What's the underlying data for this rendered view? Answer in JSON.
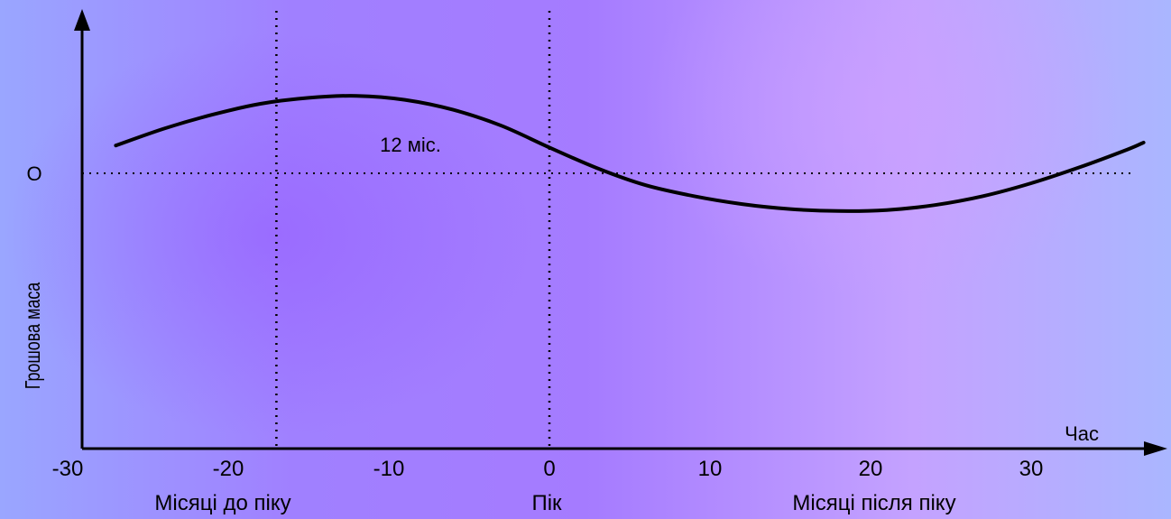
{
  "chart_data": {
    "type": "line",
    "xlabel": "Час",
    "ylabel": "Грошова маса",
    "zero_label": "O",
    "annotation": "12 міс.",
    "x_ticks": [
      "-30",
      "-20",
      "-10",
      "0",
      "10",
      "20",
      "30"
    ],
    "x_tick_values": [
      -30,
      -20,
      -10,
      0,
      10,
      20,
      30
    ],
    "xlim": [
      -30,
      37
    ],
    "vlines": [
      -17,
      0
    ],
    "region_labels": [
      "Місяці до піку",
      "Пік",
      "Місяці після піку"
    ],
    "series": [
      {
        "x": [
          -27,
          -24,
          -21,
          -18,
          -15,
          -12,
          -9,
          -6,
          -3,
          0,
          3,
          6,
          9,
          12,
          15,
          18,
          21,
          24,
          27,
          30,
          33,
          36,
          37
        ],
        "y": [
          0.28,
          0.45,
          0.59,
          0.7,
          0.76,
          0.78,
          0.74,
          0.64,
          0.48,
          0.26,
          0.05,
          -0.12,
          -0.23,
          -0.31,
          -0.36,
          -0.38,
          -0.37,
          -0.32,
          -0.23,
          -0.1,
          0.06,
          0.24,
          0.31
        ]
      }
    ],
    "colors": {
      "line": "#000000",
      "axis": "#000000"
    }
  }
}
